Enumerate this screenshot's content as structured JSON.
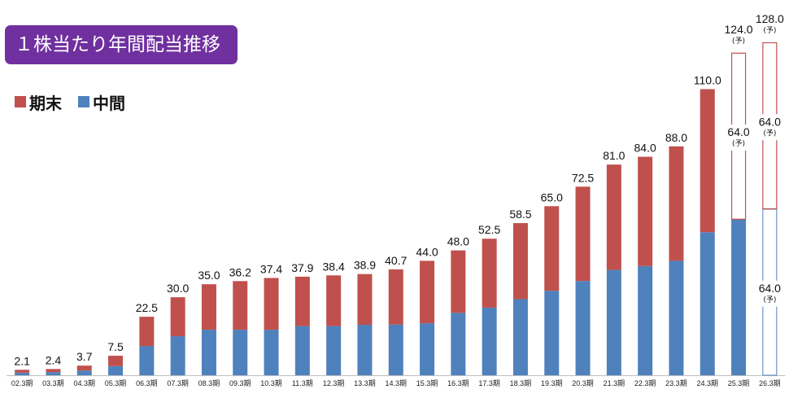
{
  "title": "１株当たり年間配当推移",
  "chart_data": {
    "type": "bar",
    "stacked": true,
    "categories": [
      "02.3期",
      "03.3期",
      "04.3期",
      "05.3期",
      "06.3期",
      "07.3期",
      "08.3期",
      "09.3期",
      "10.3期",
      "11.3期",
      "12.3期",
      "13.3期",
      "14.3期",
      "15.3期",
      "16.3期",
      "17.3期",
      "18.3期",
      "19.3期",
      "20.3期",
      "21.3期",
      "22.3期",
      "23.3期",
      "24.3期",
      "25.3期",
      "26.3期"
    ],
    "series": [
      {
        "name": "中間",
        "color": "#4f81bd",
        "values": [
          1.0,
          1.2,
          1.8,
          3.5,
          11.25,
          15.0,
          17.5,
          17.5,
          17.5,
          18.9,
          18.9,
          19.4,
          19.5,
          20.0,
          24.0,
          26.0,
          29.25,
          32.5,
          36.25,
          40.5,
          42.0,
          44.0,
          55.0,
          60.0,
          64.0
        ]
      },
      {
        "name": "期末",
        "color": "#c0504d",
        "values": [
          1.1,
          1.2,
          1.9,
          4.0,
          11.25,
          15.0,
          17.5,
          18.7,
          19.9,
          19.0,
          19.5,
          19.5,
          21.2,
          24.0,
          24.0,
          26.5,
          29.25,
          32.5,
          36.25,
          40.5,
          42.0,
          44.0,
          55.0,
          64.0,
          64.0
        ]
      }
    ],
    "totals": [
      2.1,
      2.4,
      3.7,
      7.5,
      22.5,
      30.0,
      35.0,
      36.2,
      37.4,
      37.9,
      38.4,
      38.9,
      40.7,
      44.0,
      48.0,
      52.5,
      58.5,
      65.0,
      72.5,
      81.0,
      84.0,
      88.0,
      110.0,
      124.0,
      128.0
    ],
    "total_labels": [
      "2.1",
      "2.4",
      "3.7",
      "7.5",
      "22.5",
      "30.0",
      "35.0",
      "36.2",
      "37.4",
      "37.9",
      "38.4",
      "38.9",
      "40.7",
      "44.0",
      "48.0",
      "52.5",
      "58.5",
      "65.0",
      "72.5",
      "81.0",
      "84.0",
      "88.0",
      "110.0",
      "124.0",
      "128.0"
    ],
    "forecast_from_index": 23,
    "forecast_mark": "(予)",
    "forecast_labels": [
      {
        "index": 23,
        "segment_labels": [
          "64.0",
          ""
        ]
      },
      {
        "index": 24,
        "segment_labels": [
          "64.0",
          "64.0"
        ]
      }
    ],
    "ylim": [
      0,
      128
    ],
    "grid": false,
    "legend": [
      "期末",
      "中間"
    ],
    "legend_position": "top-left"
  }
}
